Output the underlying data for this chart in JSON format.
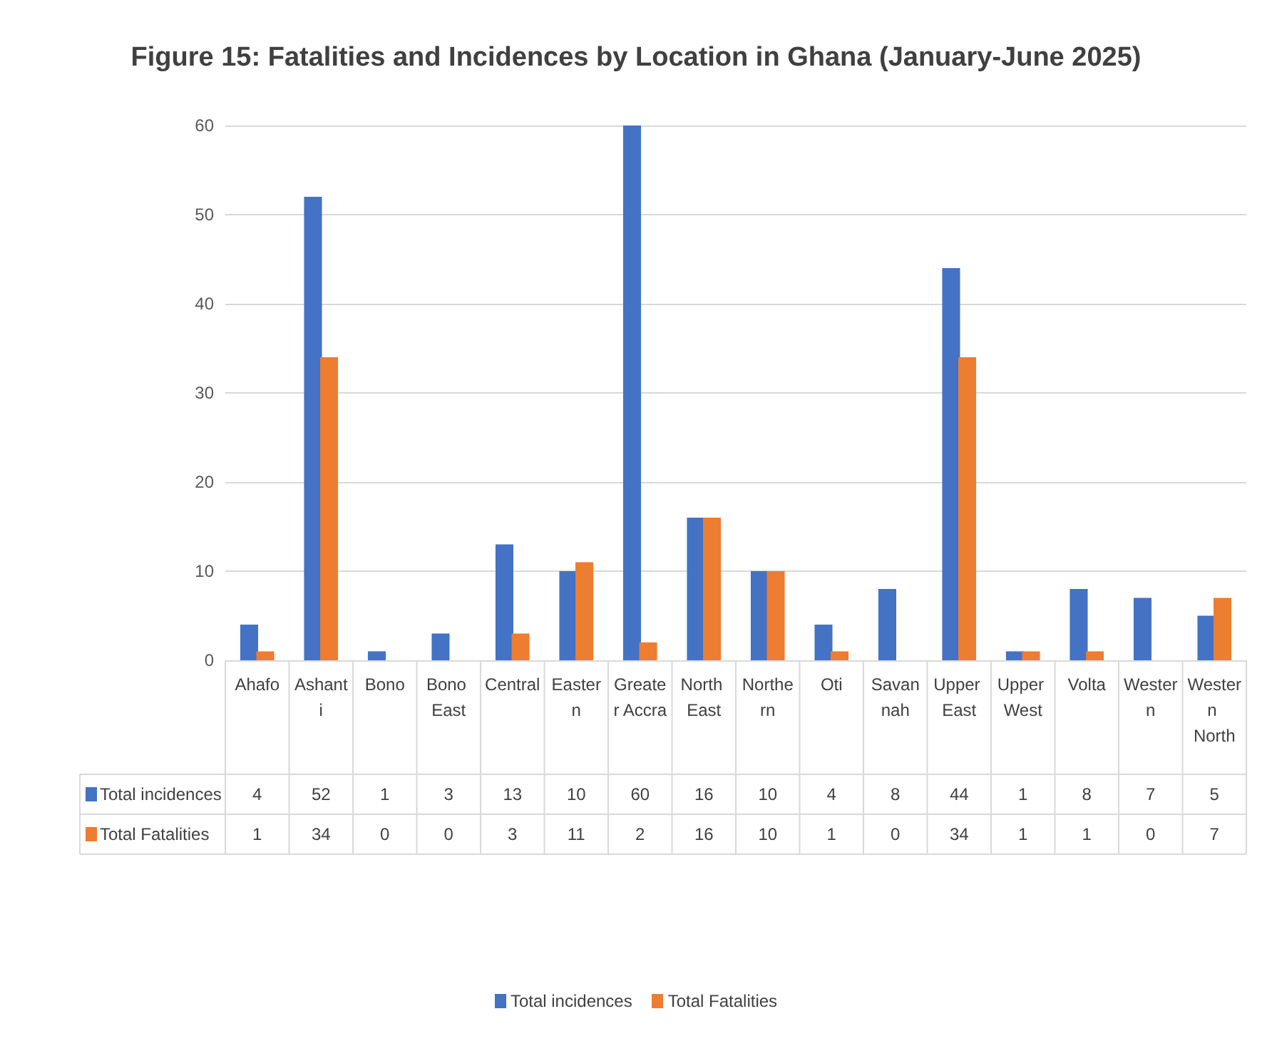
{
  "chart_data": {
    "type": "bar",
    "title": "Figure 15: Fatalities and Incidences by Location in Ghana (January-June 2025)",
    "categories": [
      "Ahafo",
      "Ashanti",
      "Bono",
      "Bono East",
      "Central",
      "Eastern",
      "Greater Accra",
      "North East",
      "Northern",
      "Oti",
      "Savannah",
      "Upper East",
      "Upper West",
      "Volta",
      "Western",
      "Western North"
    ],
    "series": [
      {
        "name": "Total incidences",
        "color": "#4472c4",
        "values": [
          4,
          52,
          1,
          3,
          13,
          10,
          60,
          16,
          10,
          4,
          8,
          44,
          1,
          8,
          7,
          5
        ]
      },
      {
        "name": "Total Fatalities",
        "color": "#ed7d31",
        "values": [
          1,
          34,
          0,
          0,
          3,
          11,
          2,
          16,
          10,
          1,
          0,
          34,
          1,
          1,
          0,
          7
        ]
      }
    ],
    "ylim": [
      0,
      60
    ],
    "yticks": [
      0,
      10,
      20,
      30,
      40,
      50,
      60
    ],
    "grid": "y",
    "legend": "bottom",
    "data_labels": true
  }
}
